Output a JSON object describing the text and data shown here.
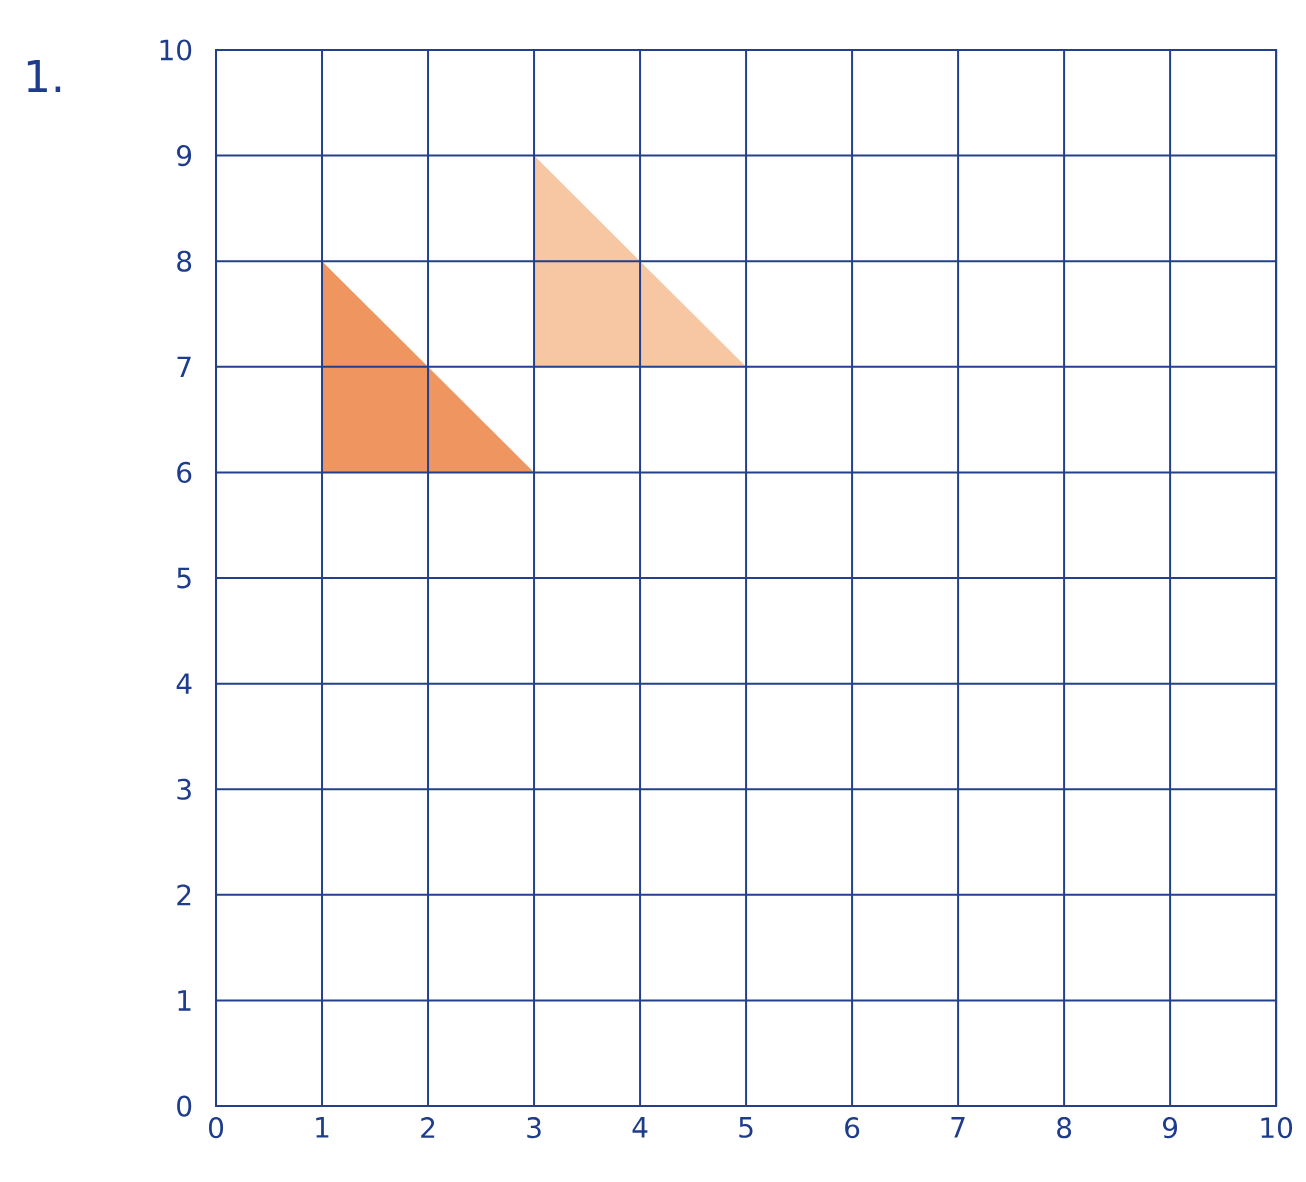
{
  "chart_data": {
    "type": "area",
    "title": "1.",
    "xlim": [
      0,
      10
    ],
    "ylim": [
      0,
      10
    ],
    "xticks": [
      0,
      1,
      2,
      3,
      4,
      5,
      6,
      7,
      8,
      9,
      10
    ],
    "yticks": [
      0,
      1,
      2,
      3,
      4,
      5,
      6,
      7,
      8,
      9,
      10
    ],
    "grid": true,
    "series": [
      {
        "color": "#ee9560",
        "x": [
          1,
          1,
          3,
          1
        ],
        "values": [
          8,
          6,
          6,
          8
        ]
      },
      {
        "color": "#f7c6a3",
        "x": [
          3,
          3,
          5,
          3
        ],
        "values": [
          9,
          7,
          7,
          9
        ]
      }
    ]
  }
}
